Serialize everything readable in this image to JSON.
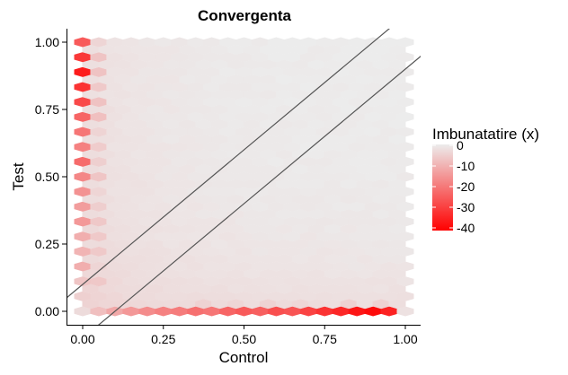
{
  "chart_data": {
    "type": "heatmap",
    "subtype": "hexbin",
    "title": "Convergenta",
    "xlabel": "Control",
    "ylabel": "Test",
    "xlim": [
      0,
      1
    ],
    "ylim": [
      0,
      1
    ],
    "x_ticks": [
      0,
      0.25,
      0.5,
      0.75,
      1
    ],
    "y_ticks": [
      0,
      0.25,
      0.5,
      0.75,
      1
    ],
    "x_tick_labels": [
      "0.00",
      "0.25",
      "0.50",
      "0.75",
      "1.00"
    ],
    "y_tick_labels": [
      "0.00",
      "0.25",
      "0.50",
      "0.75",
      "1.00"
    ],
    "grid": false,
    "hex_grid": {
      "columns": 21,
      "rows": 37
    },
    "reference_lines": [
      {
        "slope": 1,
        "intercept": 0.1
      },
      {
        "slope": 1,
        "intercept": -0.1
      }
    ],
    "color_scale": {
      "title": "Imbunatatire (x)",
      "breaks": [
        0,
        -10,
        -20,
        -30,
        -40
      ],
      "break_labels": [
        "0",
        "-10",
        "-20",
        "-30",
        "-40"
      ],
      "range": [
        -42,
        0
      ],
      "low_color": "#ff0000",
      "high_color": "#ececec",
      "position": "right"
    },
    "hot_cells": {
      "left_column": [
        [
          1.0,
          -26
        ],
        [
          0.972,
          -38
        ],
        [
          0.944,
          -32
        ],
        [
          0.917,
          -30
        ],
        [
          0.889,
          -37
        ],
        [
          0.861,
          -28
        ],
        [
          0.833,
          -33
        ],
        [
          0.806,
          -27
        ],
        [
          0.778,
          -29
        ],
        [
          0.75,
          -31
        ],
        [
          0.722,
          -24
        ],
        [
          0.694,
          -22
        ],
        [
          0.667,
          -21
        ],
        [
          0.639,
          -25
        ],
        [
          0.611,
          -19
        ],
        [
          0.583,
          -20
        ],
        [
          0.556,
          -23
        ],
        [
          0.528,
          -17
        ],
        [
          0.5,
          -18
        ],
        [
          0.472,
          -15
        ],
        [
          0.444,
          -16
        ],
        [
          0.417,
          -20
        ],
        [
          0.389,
          -14
        ],
        [
          0.361,
          -13
        ],
        [
          0.333,
          -15
        ],
        [
          0.306,
          -12
        ],
        [
          0.278,
          -11
        ],
        [
          0.25,
          -13
        ],
        [
          0.222,
          -10
        ],
        [
          0.194,
          -9
        ],
        [
          0.167,
          -11
        ],
        [
          0.139,
          -8
        ],
        [
          0.111,
          -7
        ],
        [
          0.083,
          -6
        ],
        [
          0.056,
          -5
        ],
        [
          0.028,
          -4
        ],
        [
          0.0,
          -3
        ]
      ],
      "bottom_row": [
        [
          0.05,
          -8
        ],
        [
          0.1,
          -12
        ],
        [
          0.15,
          -15
        ],
        [
          0.2,
          -17
        ],
        [
          0.25,
          -19
        ],
        [
          0.3,
          -20
        ],
        [
          0.35,
          -22
        ],
        [
          0.4,
          -21
        ],
        [
          0.45,
          -24
        ],
        [
          0.5,
          -26
        ],
        [
          0.55,
          -25
        ],
        [
          0.6,
          -28
        ],
        [
          0.65,
          -27
        ],
        [
          0.7,
          -30
        ],
        [
          0.75,
          -33
        ],
        [
          0.8,
          -35
        ],
        [
          0.85,
          -38
        ],
        [
          0.9,
          -40
        ],
        [
          0.95,
          -36
        ],
        [
          1.0,
          -2
        ]
      ]
    }
  }
}
